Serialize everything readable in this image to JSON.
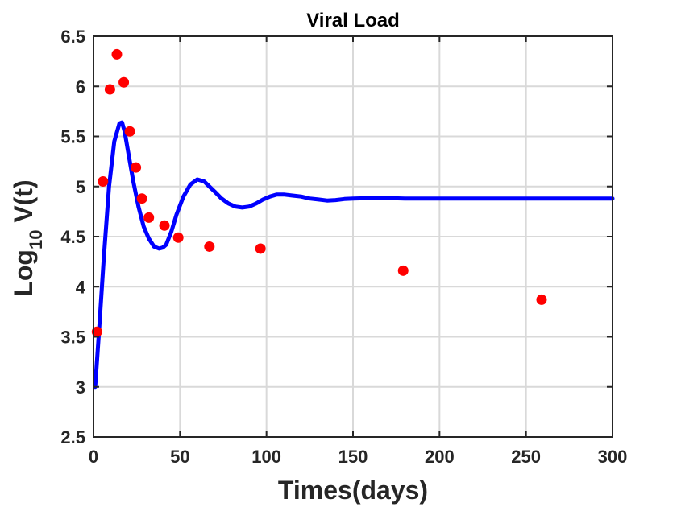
{
  "chart_data": {
    "type": "line",
    "title": "Viral Load",
    "xlabel": "Times(days)",
    "ylabel": {
      "main": "Log",
      "sub": "10",
      "suffix": " V(t)"
    },
    "xlim": [
      0,
      300
    ],
    "ylim": [
      2.5,
      6.5
    ],
    "xticks": [
      0,
      50,
      100,
      150,
      200,
      250,
      300
    ],
    "yticks": [
      2.5,
      3,
      3.5,
      4,
      4.5,
      5,
      5.5,
      6,
      6.5
    ],
    "xtick_labels": [
      "0",
      "50",
      "100",
      "150",
      "200",
      "250",
      "300"
    ],
    "ytick_labels": [
      "2.5",
      "3",
      "3.5",
      "4",
      "4.5",
      "5",
      "5.5",
      "6",
      "6.5"
    ],
    "grid": true,
    "series": [
      {
        "kind": "line",
        "color": "#0000ff",
        "x": [
          1,
          3,
          6,
          9,
          12,
          15,
          16.5,
          18,
          20,
          23,
          26,
          29,
          32,
          35,
          38,
          40,
          42,
          45,
          48,
          52,
          56,
          60,
          64,
          67,
          70,
          74,
          78,
          82,
          86,
          90,
          94,
          98,
          102,
          106,
          110,
          115,
          120,
          125,
          130,
          135,
          140,
          145,
          150,
          160,
          170,
          180,
          200,
          220,
          240,
          260,
          280,
          300
        ],
        "y": [
          3.0,
          3.5,
          4.3,
          5.0,
          5.45,
          5.63,
          5.64,
          5.55,
          5.35,
          5.05,
          4.8,
          4.6,
          4.48,
          4.4,
          4.38,
          4.39,
          4.42,
          4.55,
          4.72,
          4.9,
          5.02,
          5.07,
          5.05,
          5.0,
          4.95,
          4.88,
          4.83,
          4.8,
          4.79,
          4.8,
          4.83,
          4.87,
          4.9,
          4.92,
          4.92,
          4.91,
          4.9,
          4.88,
          4.87,
          4.86,
          4.865,
          4.875,
          4.88,
          4.885,
          4.885,
          4.88,
          4.88,
          4.88,
          4.88,
          4.88,
          4.88,
          4.88
        ]
      },
      {
        "kind": "scatter",
        "color": "#ff0000",
        "x": [
          2,
          5.5,
          9.5,
          13.5,
          17.5,
          21,
          24.5,
          28,
          32,
          41,
          49,
          67,
          96.5,
          179,
          259
        ],
        "y": [
          3.55,
          5.05,
          5.97,
          6.32,
          6.04,
          5.55,
          5.19,
          4.88,
          4.69,
          4.61,
          4.49,
          4.4,
          4.38,
          4.16,
          3.87
        ]
      }
    ]
  }
}
